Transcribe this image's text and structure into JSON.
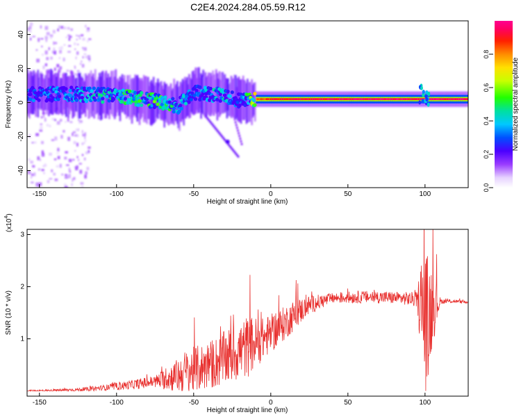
{
  "title": "C2E4.2024.284.05.59.R12",
  "colorbar": {
    "label": "Normalized spectral amplitude",
    "ticks": [
      "0.0",
      "0.2",
      "0.4",
      "0.6",
      "0.8"
    ],
    "tick_values": [
      0.0,
      0.2,
      0.4,
      0.6,
      0.8
    ],
    "range": [
      0,
      1
    ]
  },
  "chart_data": [
    {
      "type": "heatmap",
      "title": "C2E4.2024.284.05.59.R12",
      "xlabel": "Height of straight line (km)",
      "ylabel": "Frequency (Hz)",
      "xlim": [
        -158,
        128
      ],
      "ylim": [
        -50,
        48
      ],
      "x_ticks": [
        -150,
        -100,
        -50,
        0,
        50,
        100
      ],
      "x_tick_labels": [
        "-150",
        "-100",
        "-50",
        "0",
        "50",
        "100"
      ],
      "y_ticks": [
        -40,
        -20,
        0,
        20,
        40
      ],
      "y_tick_labels": [
        "-40",
        "-20",
        "0",
        "20",
        "40"
      ],
      "band": {
        "description_points_x": [
          -155,
          -130,
          -100,
          -75,
          -60,
          -50,
          -40,
          -30,
          -20,
          -10,
          0,
          50,
          100,
          128
        ],
        "center_freq_hz": [
          5,
          5,
          4,
          1,
          -2,
          6,
          5,
          4,
          1,
          2,
          2,
          2,
          2,
          2
        ],
        "peak_amplitude": [
          0.35,
          0.4,
          0.55,
          0.6,
          0.5,
          0.35,
          0.45,
          0.5,
          0.3,
          0.8,
          0.9,
          0.95,
          0.95,
          0.95
        ]
      }
    },
    {
      "type": "line",
      "title": "",
      "xlabel": "Height of straight line (km)",
      "ylabel": "SNR (10 * v/v)",
      "scale_label": "(x10",
      "scale_exponent": "4",
      "xlim": [
        -158,
        128
      ],
      "ylim": [
        -0.1,
        3.1
      ],
      "x_ticks": [
        -150,
        -100,
        -50,
        0,
        50,
        100
      ],
      "x_tick_labels": [
        "-150",
        "-100",
        "-50",
        "0",
        "50",
        "100"
      ],
      "y_ticks": [
        1,
        2,
        3
      ],
      "y_tick_labels": [
        "1",
        "2",
        "3"
      ],
      "color": "#e8302e",
      "envelope": {
        "x": [
          -158,
          -140,
          -120,
          -105,
          -90,
          -75,
          -62,
          -55,
          -45,
          -35,
          -25,
          -15,
          -5,
          5,
          15,
          25,
          40,
          55,
          70,
          85,
          95,
          98,
          101,
          104,
          110,
          120,
          128
        ],
        "base": [
          0.0,
          0.01,
          0.03,
          0.07,
          0.12,
          0.18,
          0.28,
          0.35,
          0.45,
          0.55,
          0.7,
          0.85,
          1.0,
          1.2,
          1.45,
          1.65,
          1.78,
          1.8,
          1.8,
          1.78,
          1.75,
          1.6,
          1.2,
          1.6,
          1.72,
          1.72,
          1.7
        ],
        "noise": [
          0.02,
          0.02,
          0.04,
          0.06,
          0.09,
          0.12,
          0.3,
          0.45,
          0.45,
          0.5,
          0.55,
          0.6,
          0.4,
          0.35,
          0.3,
          0.18,
          0.1,
          0.12,
          0.12,
          0.12,
          0.15,
          1.2,
          1.5,
          0.9,
          0.05,
          0.03,
          0.03
        ]
      }
    }
  ]
}
